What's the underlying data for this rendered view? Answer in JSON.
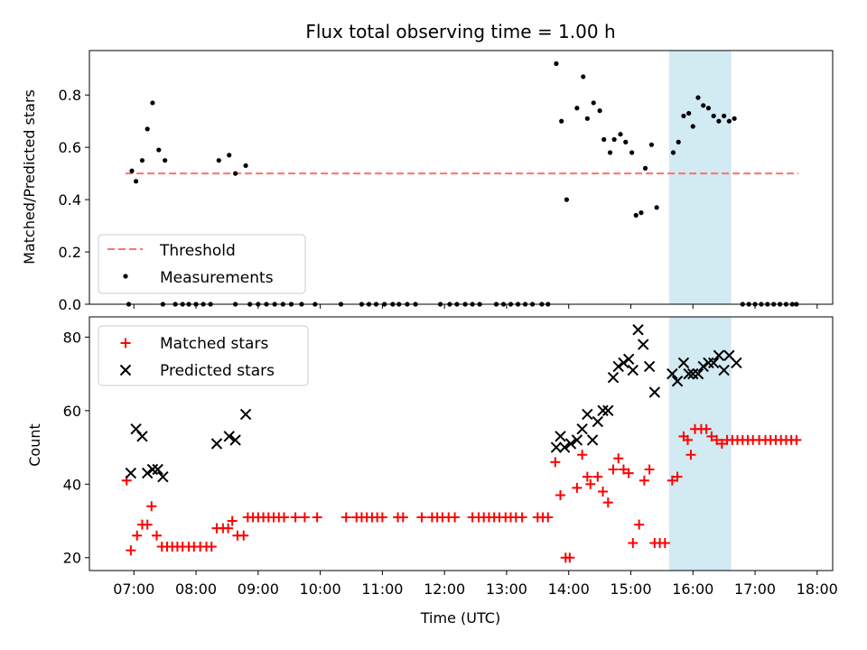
{
  "title": "Flux total observing time = 1.00 h",
  "colors": {
    "threshold": "#ff7070",
    "measurement": "#000000",
    "matched": "#ff0000",
    "predicted": "#000000",
    "band": "#add8e6"
  },
  "chart_data": [
    {
      "type": "scatter",
      "ylabel": "Matched/Predicted stars",
      "ylim": [
        0,
        0.97
      ],
      "yticks": [
        0.0,
        0.2,
        0.4,
        0.6,
        0.8
      ],
      "ytick_labels": [
        "0.0",
        "0.2",
        "0.4",
        "0.6",
        "0.8"
      ],
      "xlim": [
        "06:17",
        "18:15"
      ],
      "highlight_band": [
        "15:37",
        "16:37"
      ],
      "threshold": {
        "name": "Threshold",
        "value": 0.5,
        "x": [
          "06:52",
          "17:42"
        ]
      },
      "legend": {
        "position": "lower-left",
        "entries": [
          "Threshold",
          "Measurements"
        ]
      },
      "series": [
        {
          "name": "Measurements",
          "points": [
            [
              "06:55",
              0.0
            ],
            [
              "06:58",
              0.51
            ],
            [
              "07:02",
              0.47
            ],
            [
              "07:08",
              0.55
            ],
            [
              "07:13",
              0.67
            ],
            [
              "07:18",
              0.77
            ],
            [
              "07:24",
              0.59
            ],
            [
              "07:30",
              0.55
            ],
            [
              "07:28",
              0.0
            ],
            [
              "07:40",
              0.0
            ],
            [
              "07:47",
              0.0
            ],
            [
              "07:53",
              0.0
            ],
            [
              "08:00",
              0.0
            ],
            [
              "08:07",
              0.0
            ],
            [
              "08:14",
              0.0
            ],
            [
              "08:22",
              0.55
            ],
            [
              "08:32",
              0.57
            ],
            [
              "08:38",
              0.5
            ],
            [
              "08:48",
              0.53
            ],
            [
              "08:38",
              0.0
            ],
            [
              "08:52",
              0.0
            ],
            [
              "09:00",
              0.0
            ],
            [
              "09:08",
              0.0
            ],
            [
              "09:16",
              0.0
            ],
            [
              "09:24",
              0.0
            ],
            [
              "09:32",
              0.0
            ],
            [
              "09:42",
              0.0
            ],
            [
              "09:55",
              0.0
            ],
            [
              "10:20",
              0.0
            ],
            [
              "10:40",
              0.0
            ],
            [
              "10:47",
              0.0
            ],
            [
              "10:54",
              0.0
            ],
            [
              "11:02",
              0.0
            ],
            [
              "11:10",
              0.0
            ],
            [
              "11:16",
              0.0
            ],
            [
              "11:24",
              0.0
            ],
            [
              "11:32",
              0.0
            ],
            [
              "11:56",
              0.0
            ],
            [
              "12:05",
              0.0
            ],
            [
              "12:12",
              0.0
            ],
            [
              "12:20",
              0.0
            ],
            [
              "12:27",
              0.0
            ],
            [
              "12:34",
              0.0
            ],
            [
              "12:50",
              0.0
            ],
            [
              "12:57",
              0.0
            ],
            [
              "13:04",
              0.0
            ],
            [
              "13:11",
              0.0
            ],
            [
              "13:18",
              0.0
            ],
            [
              "13:25",
              0.0
            ],
            [
              "13:34",
              0.0
            ],
            [
              "13:40",
              0.0
            ],
            [
              "13:48",
              0.92
            ],
            [
              "13:53",
              0.7
            ],
            [
              "13:58",
              0.4
            ],
            [
              "14:08",
              0.75
            ],
            [
              "14:14",
              0.87
            ],
            [
              "14:18",
              0.71
            ],
            [
              "14:24",
              0.77
            ],
            [
              "14:30",
              0.74
            ],
            [
              "14:34",
              0.63
            ],
            [
              "14:40",
              0.58
            ],
            [
              "14:44",
              0.63
            ],
            [
              "14:50",
              0.65
            ],
            [
              "14:55",
              0.62
            ],
            [
              "15:01",
              0.58
            ],
            [
              "15:05",
              0.34
            ],
            [
              "15:10",
              0.35
            ],
            [
              "15:14",
              0.52
            ],
            [
              "15:20",
              0.61
            ],
            [
              "15:25",
              0.37
            ],
            [
              "15:41",
              0.58
            ],
            [
              "15:46",
              0.62
            ],
            [
              "15:51",
              0.72
            ],
            [
              "15:56",
              0.73
            ],
            [
              "16:00",
              0.68
            ],
            [
              "16:05",
              0.79
            ],
            [
              "16:10",
              0.76
            ],
            [
              "16:15",
              0.75
            ],
            [
              "16:20",
              0.72
            ],
            [
              "16:25",
              0.7
            ],
            [
              "16:30",
              0.72
            ],
            [
              "16:35",
              0.7
            ],
            [
              "16:40",
              0.71
            ],
            [
              "16:48",
              0.0
            ],
            [
              "16:54",
              0.0
            ],
            [
              "17:00",
              0.0
            ],
            [
              "17:06",
              0.0
            ],
            [
              "17:12",
              0.0
            ],
            [
              "17:18",
              0.0
            ],
            [
              "17:24",
              0.0
            ],
            [
              "17:30",
              0.0
            ],
            [
              "17:36",
              0.0
            ],
            [
              "17:40",
              0.0
            ]
          ]
        }
      ]
    },
    {
      "type": "scatter",
      "ylabel": "Count",
      "xlabel": "Time (UTC)",
      "ylim": [
        16.5,
        85.5
      ],
      "yticks": [
        20,
        40,
        60,
        80
      ],
      "ytick_labels": [
        "20",
        "40",
        "60",
        "80"
      ],
      "xlim": [
        "06:17",
        "18:15"
      ],
      "xticks": [
        "07:00",
        "08:00",
        "09:00",
        "10:00",
        "11:00",
        "12:00",
        "13:00",
        "14:00",
        "15:00",
        "16:00",
        "17:00",
        "18:00"
      ],
      "highlight_band": [
        "15:37",
        "16:37"
      ],
      "legend": {
        "position": "upper-left",
        "entries": [
          "Matched stars",
          "Predicted stars"
        ]
      },
      "series": [
        {
          "name": "Matched stars",
          "marker": "+",
          "points": [
            [
              "06:53",
              41
            ],
            [
              "06:57",
              22
            ],
            [
              "07:03",
              26
            ],
            [
              "07:08",
              29
            ],
            [
              "07:13",
              29
            ],
            [
              "07:17",
              34
            ],
            [
              "07:22",
              26
            ],
            [
              "07:27",
              23
            ],
            [
              "07:32",
              23
            ],
            [
              "07:37",
              23
            ],
            [
              "07:42",
              23
            ],
            [
              "07:47",
              23
            ],
            [
              "07:53",
              23
            ],
            [
              "07:58",
              23
            ],
            [
              "08:04",
              23
            ],
            [
              "08:10",
              23
            ],
            [
              "08:15",
              23
            ],
            [
              "08:20",
              28
            ],
            [
              "08:26",
              28
            ],
            [
              "08:31",
              28
            ],
            [
              "08:35",
              30
            ],
            [
              "08:40",
              26
            ],
            [
              "08:46",
              26
            ],
            [
              "08:50",
              31
            ],
            [
              "08:55",
              31
            ],
            [
              "09:00",
              31
            ],
            [
              "09:05",
              31
            ],
            [
              "09:10",
              31
            ],
            [
              "09:15",
              31
            ],
            [
              "09:20",
              31
            ],
            [
              "09:25",
              31
            ],
            [
              "09:36",
              31
            ],
            [
              "09:45",
              31
            ],
            [
              "09:57",
              31
            ],
            [
              "10:25",
              31
            ],
            [
              "10:35",
              31
            ],
            [
              "10:40",
              31
            ],
            [
              "10:45",
              31
            ],
            [
              "10:50",
              31
            ],
            [
              "10:55",
              31
            ],
            [
              "11:00",
              31
            ],
            [
              "11:15",
              31
            ],
            [
              "11:20",
              31
            ],
            [
              "11:38",
              31
            ],
            [
              "11:48",
              31
            ],
            [
              "11:53",
              31
            ],
            [
              "11:58",
              31
            ],
            [
              "12:04",
              31
            ],
            [
              "12:10",
              31
            ],
            [
              "12:27",
              31
            ],
            [
              "12:33",
              31
            ],
            [
              "12:38",
              31
            ],
            [
              "12:43",
              31
            ],
            [
              "12:48",
              31
            ],
            [
              "12:53",
              31
            ],
            [
              "12:59",
              31
            ],
            [
              "13:04",
              31
            ],
            [
              "13:09",
              31
            ],
            [
              "13:15",
              31
            ],
            [
              "13:30",
              31
            ],
            [
              "13:35",
              31
            ],
            [
              "13:40",
              31
            ],
            [
              "13:47",
              46
            ],
            [
              "13:52",
              37
            ],
            [
              "13:57",
              20
            ],
            [
              "14:01",
              20
            ],
            [
              "14:08",
              39
            ],
            [
              "14:13",
              48
            ],
            [
              "14:18",
              42
            ],
            [
              "14:21",
              40
            ],
            [
              "14:28",
              42
            ],
            [
              "14:33",
              38
            ],
            [
              "14:38",
              35
            ],
            [
              "14:43",
              44
            ],
            [
              "14:48",
              47
            ],
            [
              "14:53",
              44
            ],
            [
              "14:58",
              43
            ],
            [
              "15:02",
              24
            ],
            [
              "15:08",
              29
            ],
            [
              "15:13",
              41
            ],
            [
              "15:18",
              44
            ],
            [
              "15:23",
              24
            ],
            [
              "15:28",
              24
            ],
            [
              "15:33",
              24
            ],
            [
              "15:40",
              41
            ],
            [
              "15:45",
              42
            ],
            [
              "15:51",
              53
            ],
            [
              "15:55",
              52
            ],
            [
              "15:58",
              48
            ],
            [
              "16:02",
              55
            ],
            [
              "16:08",
              55
            ],
            [
              "16:13",
              55
            ],
            [
              "16:18",
              53
            ],
            [
              "16:23",
              52
            ],
            [
              "16:28",
              51
            ],
            [
              "16:33",
              52
            ],
            [
              "16:38",
              52
            ],
            [
              "16:43",
              52
            ],
            [
              "16:48",
              52
            ],
            [
              "16:53",
              52
            ],
            [
              "16:58",
              52
            ],
            [
              "17:04",
              52
            ],
            [
              "17:10",
              52
            ],
            [
              "17:15",
              52
            ],
            [
              "17:20",
              52
            ],
            [
              "17:25",
              52
            ],
            [
              "17:30",
              52
            ],
            [
              "17:35",
              52
            ],
            [
              "17:40",
              52
            ]
          ]
        },
        {
          "name": "Predicted stars",
          "marker": "x",
          "points": [
            [
              "06:57",
              43
            ],
            [
              "07:02",
              55
            ],
            [
              "07:08",
              53
            ],
            [
              "07:13",
              43
            ],
            [
              "07:18",
              44
            ],
            [
              "07:23",
              44
            ],
            [
              "07:28",
              42
            ],
            [
              "08:20",
              51
            ],
            [
              "08:32",
              53
            ],
            [
              "08:38",
              52
            ],
            [
              "08:48",
              59
            ],
            [
              "13:48",
              50
            ],
            [
              "13:52",
              53
            ],
            [
              "13:56",
              50
            ],
            [
              "14:02",
              51
            ],
            [
              "14:08",
              52
            ],
            [
              "14:13",
              55
            ],
            [
              "14:18",
              59
            ],
            [
              "14:23",
              52
            ],
            [
              "14:28",
              57
            ],
            [
              "14:33",
              60
            ],
            [
              "14:38",
              60
            ],
            [
              "14:43",
              69
            ],
            [
              "14:48",
              72
            ],
            [
              "14:53",
              73
            ],
            [
              "14:58",
              74
            ],
            [
              "15:02",
              71
            ],
            [
              "15:07",
              82
            ],
            [
              "15:12",
              78
            ],
            [
              "15:18",
              72
            ],
            [
              "15:23",
              65
            ],
            [
              "15:40",
              70
            ],
            [
              "15:45",
              68
            ],
            [
              "15:51",
              73
            ],
            [
              "15:56",
              70
            ],
            [
              "16:00",
              70
            ],
            [
              "16:05",
              70
            ],
            [
              "16:10",
              72
            ],
            [
              "16:15",
              73
            ],
            [
              "16:20",
              73
            ],
            [
              "16:25",
              75
            ],
            [
              "16:30",
              71
            ],
            [
              "16:35",
              75
            ],
            [
              "16:42",
              73
            ]
          ]
        }
      ]
    }
  ]
}
